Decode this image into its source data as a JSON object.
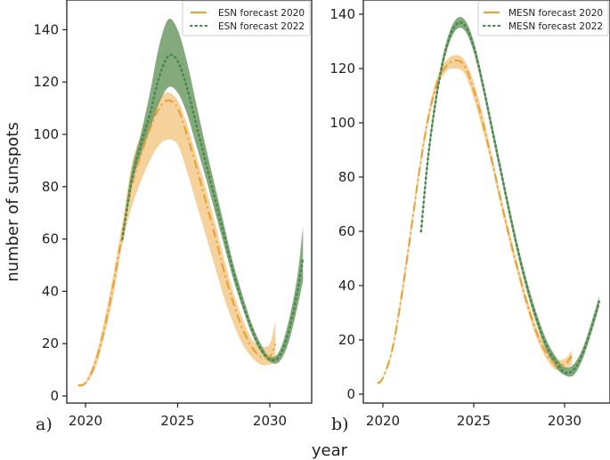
{
  "chart_data": [
    {
      "type": "line",
      "panel_label": "a)",
      "title": "",
      "xlabel": "year",
      "ylabel": "number of sunspots",
      "xlim": [
        2019.0,
        2032.3
      ],
      "ylim": [
        -3,
        150
      ],
      "xticks": [
        2020,
        2025,
        2030
      ],
      "yticks": [
        0,
        20,
        40,
        60,
        80,
        100,
        120,
        140
      ],
      "legend_position": "upper right",
      "series": [
        {
          "name": "ESN forecast 2020",
          "color": "#e8a33a",
          "band_color": "#f1c27a",
          "style": "dashdot",
          "x": [
            2019.6,
            2020.0,
            2020.5,
            2021.0,
            2021.5,
            2022.0,
            2022.5,
            2023.0,
            2023.5,
            2024.0,
            2024.5,
            2025.0,
            2025.5,
            2026.0,
            2026.5,
            2027.0,
            2027.5,
            2028.0,
            2028.5,
            2029.0,
            2029.5,
            2030.0,
            2030.3
          ],
          "values": [
            4,
            5,
            12,
            25,
            42,
            62,
            80,
            92,
            102,
            110,
            113,
            110,
            100,
            88,
            75,
            62,
            48,
            36,
            26,
            19,
            15,
            15,
            20
          ],
          "lower": [
            3.5,
            4.5,
            10,
            22,
            38,
            58,
            72,
            82,
            90,
            96,
            98,
            96,
            86,
            74,
            62,
            50,
            38,
            28,
            20,
            15,
            12,
            12,
            13
          ],
          "upper": [
            4.5,
            5.5,
            14,
            28,
            46,
            66,
            88,
            100,
            108,
            114,
            116,
            113,
            104,
            92,
            80,
            67,
            53,
            40,
            30,
            22,
            19,
            20,
            29
          ]
        },
        {
          "name": "ESN forecast 2022",
          "color": "#4a8a4e",
          "band_color": "#6e9a65",
          "style": "dotted",
          "x": [
            2022.0,
            2022.5,
            2023.0,
            2023.5,
            2024.0,
            2024.5,
            2025.0,
            2025.5,
            2026.0,
            2026.5,
            2027.0,
            2027.5,
            2028.0,
            2028.5,
            2029.0,
            2029.5,
            2030.0,
            2030.5,
            2031.0,
            2031.5,
            2031.8
          ],
          "values": [
            60,
            82,
            96,
            108,
            122,
            130,
            128,
            118,
            104,
            90,
            76,
            62,
            48,
            36,
            26,
            18,
            14,
            15,
            24,
            40,
            53
          ],
          "lower": [
            58,
            80,
            92,
            102,
            112,
            118,
            116,
            108,
            96,
            84,
            71,
            58,
            45,
            34,
            24,
            17,
            13,
            13,
            20,
            34,
            44
          ],
          "upper": [
            62,
            86,
            100,
            116,
            134,
            144,
            140,
            128,
            112,
            96,
            81,
            66,
            51,
            39,
            28,
            20,
            15,
            17,
            28,
            46,
            65
          ]
        }
      ]
    },
    {
      "type": "line",
      "panel_label": "b)",
      "title": "",
      "xlabel": "year",
      "ylabel": "",
      "xlim": [
        2019.1,
        2032.3
      ],
      "ylim": [
        -3,
        145
      ],
      "xticks": [
        2020,
        2025,
        2030
      ],
      "yticks": [
        0,
        20,
        40,
        60,
        80,
        100,
        120,
        140
      ],
      "legend_position": "upper right",
      "series": [
        {
          "name": "MESN forecast 2020",
          "color": "#e8a33a",
          "band_color": "#f1c27a",
          "style": "dashdot",
          "x": [
            2019.7,
            2020.0,
            2020.5,
            2021.0,
            2021.5,
            2022.0,
            2022.5,
            2023.0,
            2023.5,
            2024.0,
            2024.5,
            2025.0,
            2025.5,
            2026.0,
            2026.5,
            2027.0,
            2027.5,
            2028.0,
            2028.5,
            2029.0,
            2029.5,
            2030.0,
            2030.4
          ],
          "values": [
            4,
            6,
            16,
            35,
            58,
            82,
            102,
            115,
            121,
            123,
            121,
            112,
            100,
            86,
            71,
            57,
            44,
            32,
            22,
            15,
            11,
            11,
            14
          ],
          "lower": [
            3.5,
            5.5,
            15,
            33,
            56,
            80,
            100,
            113,
            119,
            120,
            118,
            109,
            97,
            84,
            69,
            55,
            42,
            30,
            20,
            13,
            9,
            9,
            11
          ],
          "upper": [
            4.5,
            6.5,
            17,
            37,
            60,
            84,
            104,
            117,
            123,
            125,
            123,
            115,
            103,
            88,
            73,
            59,
            46,
            34,
            24,
            17,
            13,
            13,
            16
          ]
        },
        {
          "name": "MESN forecast 2022",
          "color": "#4a8a4e",
          "band_color": "#6e9a65",
          "style": "dotted",
          "x": [
            2022.1,
            2022.5,
            2023.0,
            2023.5,
            2024.0,
            2024.5,
            2025.0,
            2025.5,
            2026.0,
            2026.5,
            2027.0,
            2027.5,
            2028.0,
            2028.5,
            2029.0,
            2029.5,
            2030.0,
            2030.5,
            2031.0,
            2031.5,
            2031.9
          ],
          "values": [
            60,
            88,
            112,
            128,
            136,
            136,
            128,
            114,
            98,
            82,
            66,
            51,
            38,
            27,
            18,
            12,
            8,
            9,
            15,
            25,
            34
          ],
          "lower": [
            59,
            86,
            110,
            126,
            134,
            134,
            126,
            112,
            96,
            80,
            64,
            49,
            36,
            25,
            16,
            10,
            7,
            7,
            13,
            23,
            32
          ],
          "upper": [
            61,
            90,
            114,
            130,
            138,
            138,
            130,
            116,
            100,
            84,
            68,
            53,
            40,
            29,
            20,
            14,
            10,
            11,
            17,
            27,
            36
          ]
        }
      ]
    }
  ],
  "figure": {
    "shared_xlabel": "year",
    "ylabel": "number of sunspots",
    "panel_a_label": "a)",
    "panel_b_label": "b)",
    "legend_a": [
      "ESN forecast 2020",
      "ESN forecast 2022"
    ],
    "legend_b": [
      "MESN forecast 2020",
      "MESN forecast 2022"
    ]
  }
}
